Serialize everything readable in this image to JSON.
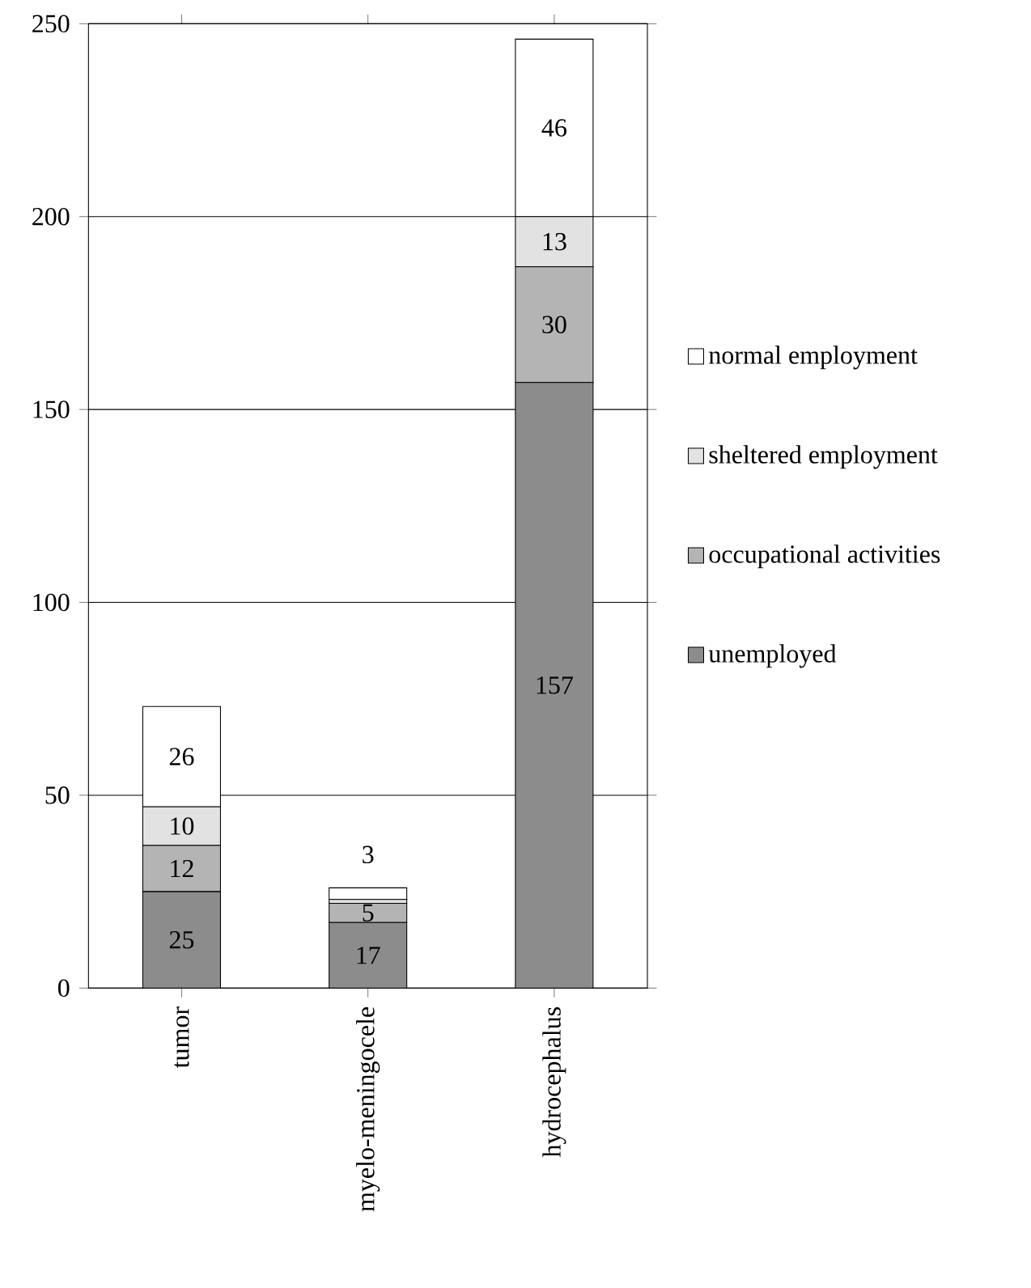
{
  "chart_data": {
    "type": "bar",
    "stacked": true,
    "categories": [
      "tumor",
      "myelo-meningocele",
      "hydrocephalus"
    ],
    "series": [
      {
        "name": "unemployed",
        "color": "#8c8c8c",
        "values": [
          25,
          17,
          157
        ],
        "value_labels": [
          "25",
          "17",
          "157"
        ]
      },
      {
        "name": "occupational activities",
        "color": "#b4b4b4",
        "values": [
          12,
          5,
          30
        ],
        "value_labels": [
          "12",
          "5",
          "30"
        ]
      },
      {
        "name": "sheltered employment",
        "color": "#e2e2e2",
        "values": [
          10,
          1,
          13
        ],
        "value_labels": [
          "10",
          null,
          "13"
        ]
      },
      {
        "name": "normal employment",
        "color": "#ffffff",
        "values": [
          26,
          3,
          46
        ],
        "value_labels": [
          "26",
          "3",
          "46"
        ]
      }
    ],
    "ylim": [
      0,
      250
    ],
    "yticks": [
      0,
      50,
      100,
      150,
      200,
      250
    ],
    "grid": "y",
    "legend": "right"
  }
}
